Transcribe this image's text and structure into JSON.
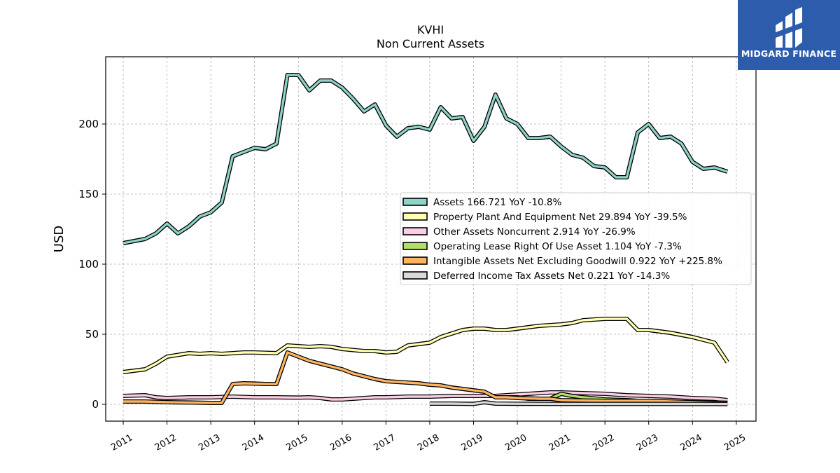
{
  "chart_data": {
    "type": "line",
    "title": "KVHI",
    "subtitle": "Non Current  Assets",
    "ylabel": "USD",
    "xlim": [
      2010.6,
      2025.45
    ],
    "ylim": [
      -12,
      248
    ],
    "yticks": [
      0,
      50,
      100,
      150,
      200
    ],
    "xticks": [
      "2011",
      "2012",
      "2013",
      "2014",
      "2015",
      "2016",
      "2017",
      "2018",
      "2019",
      "2020",
      "2021",
      "2022",
      "2023",
      "2024",
      "2025"
    ],
    "grid": true,
    "legend_position": "center-right",
    "series": [
      {
        "name": "Assets  166.721 YoY -10.8%",
        "color": "#8dd3c7",
        "points": [
          [
            2011.0,
            115
          ],
          [
            2011.5,
            118
          ],
          [
            2011.75,
            122
          ],
          [
            2012.0,
            129
          ],
          [
            2012.25,
            122
          ],
          [
            2012.5,
            127
          ],
          [
            2012.75,
            134
          ],
          [
            2013.0,
            137
          ],
          [
            2013.25,
            144
          ],
          [
            2013.5,
            177
          ],
          [
            2013.75,
            180
          ],
          [
            2014.0,
            183
          ],
          [
            2014.25,
            182
          ],
          [
            2014.5,
            186
          ],
          [
            2014.75,
            235
          ],
          [
            2015.0,
            235
          ],
          [
            2015.25,
            224
          ],
          [
            2015.5,
            231
          ],
          [
            2015.75,
            231
          ],
          [
            2016.0,
            226
          ],
          [
            2016.25,
            218
          ],
          [
            2016.5,
            209
          ],
          [
            2016.75,
            214
          ],
          [
            2017.0,
            199
          ],
          [
            2017.25,
            191
          ],
          [
            2017.5,
            197
          ],
          [
            2017.75,
            198
          ],
          [
            2018.0,
            196
          ],
          [
            2018.25,
            212
          ],
          [
            2018.5,
            204
          ],
          [
            2018.75,
            205
          ],
          [
            2019.0,
            188
          ],
          [
            2019.25,
            198
          ],
          [
            2019.5,
            221
          ],
          [
            2019.75,
            204
          ],
          [
            2020.0,
            200
          ],
          [
            2020.25,
            190
          ],
          [
            2020.5,
            190
          ],
          [
            2020.75,
            191
          ],
          [
            2021.0,
            184
          ],
          [
            2021.25,
            178
          ],
          [
            2021.5,
            176
          ],
          [
            2021.75,
            170
          ],
          [
            2022.0,
            169
          ],
          [
            2022.25,
            162
          ],
          [
            2022.5,
            162
          ],
          [
            2022.75,
            194
          ],
          [
            2023.0,
            200
          ],
          [
            2023.25,
            190
          ],
          [
            2023.5,
            191
          ],
          [
            2023.75,
            186
          ],
          [
            2024.0,
            173
          ],
          [
            2024.25,
            168
          ],
          [
            2024.5,
            169
          ],
          [
            2024.8,
            166
          ]
        ]
      },
      {
        "name": "Property Plant And Equipment Net  29.894 YoY -39.5%",
        "color": "#ffffb3",
        "points": [
          [
            2011.0,
            23
          ],
          [
            2011.5,
            25
          ],
          [
            2011.75,
            29
          ],
          [
            2012.0,
            34
          ],
          [
            2012.5,
            36.5
          ],
          [
            2012.75,
            36
          ],
          [
            2013.0,
            36.5
          ],
          [
            2013.25,
            36
          ],
          [
            2013.75,
            37
          ],
          [
            2014.0,
            37
          ],
          [
            2014.5,
            36.5
          ],
          [
            2014.75,
            42
          ],
          [
            2015.0,
            41.5
          ],
          [
            2015.25,
            41
          ],
          [
            2015.5,
            41.5
          ],
          [
            2015.75,
            41
          ],
          [
            2016.0,
            39.5
          ],
          [
            2016.5,
            38
          ],
          [
            2016.75,
            38
          ],
          [
            2017.0,
            37
          ],
          [
            2017.25,
            37.5
          ],
          [
            2017.5,
            42
          ],
          [
            2017.75,
            43
          ],
          [
            2018.0,
            44
          ],
          [
            2018.25,
            48
          ],
          [
            2018.5,
            50.5
          ],
          [
            2018.75,
            53
          ],
          [
            2019.0,
            54
          ],
          [
            2019.25,
            54
          ],
          [
            2019.5,
            53
          ],
          [
            2019.75,
            53
          ],
          [
            2020.0,
            54
          ],
          [
            2020.25,
            55
          ],
          [
            2020.5,
            56
          ],
          [
            2020.75,
            56.5
          ],
          [
            2021.0,
            57
          ],
          [
            2021.25,
            58
          ],
          [
            2021.5,
            60
          ],
          [
            2021.75,
            60.5
          ],
          [
            2022.0,
            61
          ],
          [
            2022.25,
            61
          ],
          [
            2022.5,
            61
          ],
          [
            2022.75,
            53
          ],
          [
            2023.0,
            53
          ],
          [
            2023.25,
            52
          ],
          [
            2023.5,
            51
          ],
          [
            2023.75,
            49.5
          ],
          [
            2024.0,
            48
          ],
          [
            2024.25,
            46
          ],
          [
            2024.5,
            44
          ],
          [
            2024.8,
            30
          ]
        ]
      },
      {
        "name": "Other Assets Noncurrent  2.914 YoY -26.9%",
        "color": "#fccde5",
        "points": [
          [
            2011.0,
            6
          ],
          [
            2011.5,
            6.5
          ],
          [
            2011.75,
            5
          ],
          [
            2012.0,
            4.5
          ],
          [
            2012.5,
            5
          ],
          [
            2013.0,
            5
          ],
          [
            2013.5,
            5.5
          ],
          [
            2014.0,
            5
          ],
          [
            2014.5,
            5
          ],
          [
            2015.0,
            4.8
          ],
          [
            2015.25,
            5
          ],
          [
            2015.5,
            4.5
          ],
          [
            2015.75,
            3.5
          ],
          [
            2016.0,
            3.5
          ],
          [
            2016.25,
            4
          ],
          [
            2016.5,
            4.5
          ],
          [
            2016.75,
            5
          ],
          [
            2017.0,
            5
          ],
          [
            2017.5,
            5.5
          ],
          [
            2018.0,
            5.5
          ],
          [
            2018.5,
            6
          ],
          [
            2019.0,
            6
          ],
          [
            2019.5,
            6
          ],
          [
            2020.0,
            7
          ],
          [
            2020.5,
            8
          ],
          [
            2020.75,
            8.5
          ],
          [
            2021.0,
            8.5
          ],
          [
            2021.5,
            8
          ],
          [
            2022.0,
            7.5
          ],
          [
            2022.5,
            6.5
          ],
          [
            2023.0,
            6
          ],
          [
            2023.5,
            5.5
          ],
          [
            2024.0,
            4.5
          ],
          [
            2024.5,
            4
          ],
          [
            2024.8,
            3
          ]
        ]
      },
      {
        "name": "Operating Lease Right Of Use Asset  1.104 YoY -7.3%",
        "color": "#b3de69",
        "points": [
          [
            2019.5,
            5
          ],
          [
            2019.75,
            5
          ],
          [
            2020.0,
            5
          ],
          [
            2020.25,
            4
          ],
          [
            2020.5,
            4
          ],
          [
            2020.75,
            4
          ],
          [
            2021.0,
            7.5
          ],
          [
            2021.25,
            6
          ],
          [
            2021.5,
            5
          ],
          [
            2022.0,
            3.5
          ],
          [
            2022.5,
            3
          ],
          [
            2023.0,
            2
          ],
          [
            2023.5,
            1.8
          ],
          [
            2024.0,
            1.5
          ],
          [
            2024.5,
            1.3
          ],
          [
            2024.8,
            1.1
          ]
        ]
      },
      {
        "name": "Intangible Assets Net Excluding Goodwill  0.922 YoY +225.8%",
        "color": "#fdb462",
        "points": [
          [
            2011.0,
            2
          ],
          [
            2011.5,
            2
          ],
          [
            2012.0,
            1.5
          ],
          [
            2012.5,
            1.3
          ],
          [
            2013.0,
            1
          ],
          [
            2013.25,
            1
          ],
          [
            2013.5,
            14.5
          ],
          [
            2013.75,
            15
          ],
          [
            2014.0,
            14.8
          ],
          [
            2014.25,
            14.5
          ],
          [
            2014.5,
            14.5
          ],
          [
            2014.75,
            37
          ],
          [
            2015.0,
            34
          ],
          [
            2015.25,
            31
          ],
          [
            2015.5,
            29
          ],
          [
            2015.75,
            27
          ],
          [
            2016.0,
            25
          ],
          [
            2016.25,
            22
          ],
          [
            2016.5,
            20
          ],
          [
            2016.75,
            18
          ],
          [
            2017.0,
            16.5
          ],
          [
            2017.25,
            16
          ],
          [
            2017.5,
            15.5
          ],
          [
            2017.75,
            15
          ],
          [
            2018.0,
            14
          ],
          [
            2018.25,
            13.5
          ],
          [
            2018.5,
            12
          ],
          [
            2018.75,
            11
          ],
          [
            2019.0,
            10
          ],
          [
            2019.25,
            9
          ],
          [
            2019.5,
            5
          ],
          [
            2019.75,
            5
          ],
          [
            2020.0,
            4.5
          ],
          [
            2020.5,
            4
          ],
          [
            2020.75,
            4
          ],
          [
            2021.0,
            3
          ],
          [
            2022.0,
            2.5
          ],
          [
            2023.0,
            2.5
          ],
          [
            2023.5,
            2
          ],
          [
            2024.0,
            1.5
          ],
          [
            2024.5,
            1
          ],
          [
            2024.8,
            0.9
          ]
        ]
      },
      {
        "name": "Deferred Income Tax Assets Net  0.221 YoY -14.3%",
        "color": "#d9d9d9",
        "points": [
          [
            2018.0,
            0.5
          ],
          [
            2018.5,
            0.5
          ],
          [
            2019.0,
            0.3
          ],
          [
            2019.25,
            1.5
          ],
          [
            2019.5,
            0.5
          ],
          [
            2020.0,
            0.4
          ],
          [
            2021.0,
            0.3
          ],
          [
            2022.0,
            0.3
          ],
          [
            2023.0,
            0.3
          ],
          [
            2024.0,
            0.25
          ],
          [
            2024.8,
            0.22
          ]
        ]
      }
    ]
  },
  "logo": {
    "text": "MIDGARD FINANCE",
    "icon": "midgard-finance-logo-icon",
    "background": "#2e5cad"
  }
}
